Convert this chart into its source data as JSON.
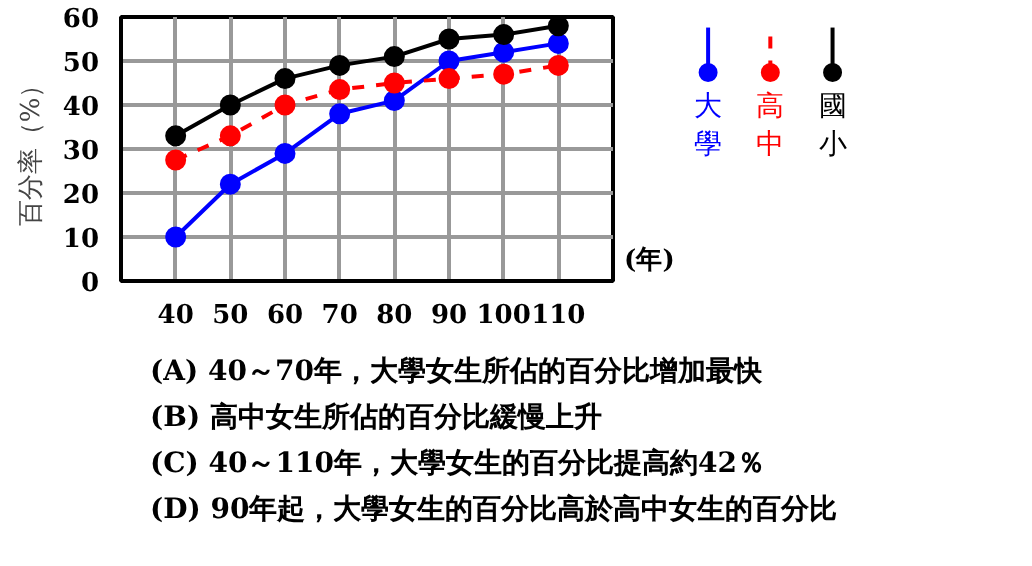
{
  "chart_data": {
    "type": "line",
    "ylabel": "百分率（%）",
    "xlabel": "(年)",
    "x": [
      40,
      50,
      60,
      70,
      80,
      90,
      100,
      110
    ],
    "xlim": [
      30,
      120
    ],
    "xticks": [
      {
        "value": 30,
        "label": null
      },
      40,
      50,
      60,
      70,
      80,
      90,
      100,
      110,
      {
        "value": 120,
        "label": null
      }
    ],
    "ylim": [
      0,
      60
    ],
    "yticks": [
      0,
      10,
      20,
      30,
      40,
      50,
      60
    ],
    "grid": true,
    "marker": "circle",
    "legend": "right",
    "series": [
      {
        "name": "大學",
        "color": "#0000ff",
        "line_style": "solid",
        "values": [
          10,
          22,
          29,
          38,
          41,
          50,
          52,
          54
        ]
      },
      {
        "name": "高中",
        "color": "#ff0000",
        "line_style": "dashed",
        "values": [
          27.5,
          33,
          40,
          43.5,
          45,
          46,
          47,
          49
        ]
      },
      {
        "name": "國小",
        "color": "#000000",
        "line_style": "solid",
        "values": [
          33,
          40,
          46,
          49,
          51,
          55,
          56,
          58
        ]
      }
    ],
    "annotations": [
      "(A)  40～70年，大學女生所佔的百分比增加最快",
      "(B)  高中女生所佔的百分比緩慢上升",
      "(C)  40～110年，大學女生的百分比提高約42％",
      "(D)  90年起，大學女生的百分比高於高中女生的百分比"
    ]
  }
}
